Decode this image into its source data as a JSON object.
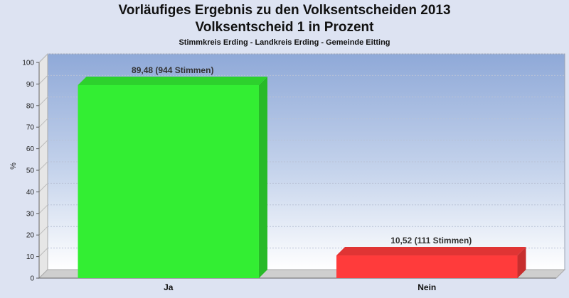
{
  "chart_data": {
    "type": "bar",
    "title": "Vorläufiges Ergebnis zu den Volksentscheiden 2013",
    "title_line2": "Volksentscheid 1 in Prozent",
    "subtitle": "Stimmkreis Erding - Landkreis Erding - Gemeinde Eitting",
    "ylabel": "%",
    "xlabel": "",
    "ylim": [
      0,
      100
    ],
    "yticks": [
      0,
      10,
      20,
      30,
      40,
      50,
      60,
      70,
      80,
      90,
      100
    ],
    "grid": true,
    "categories": [
      "Ja",
      "Nein"
    ],
    "values": [
      89.48,
      10.52
    ],
    "data_labels": [
      "89,48 (944 Stimmen)",
      "10,52 (111 Stimmen)"
    ],
    "colors": [
      "#33ee33",
      "#ff3b3b"
    ]
  }
}
